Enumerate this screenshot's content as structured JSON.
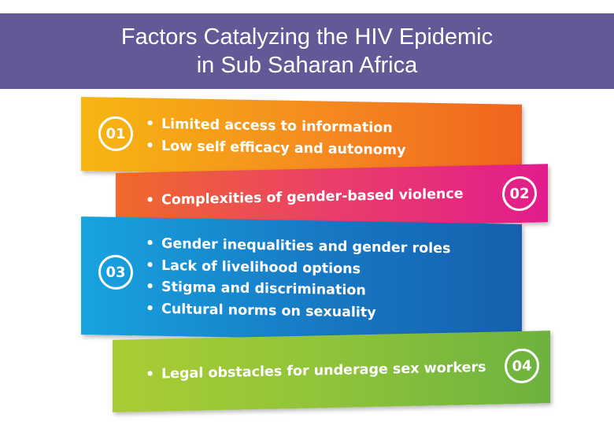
{
  "title": {
    "line1": "Factors Catalyzing the HIV Epidemic",
    "line2": "in Sub Saharan Africa"
  },
  "panels": [
    {
      "number": "01",
      "items": [
        "Limited access to information",
        "Low self efficacy and autonomy"
      ]
    },
    {
      "number": "02",
      "items": [
        "Complexities of gender-based violence"
      ]
    },
    {
      "number": "03",
      "items": [
        "Gender inequalities and gender roles",
        "Lack of livelihood options",
        "Stigma and discrimination",
        "Cultural norms on sexuality"
      ]
    },
    {
      "number": "04",
      "items": [
        "Legal obstacles for underage sex workers"
      ]
    }
  ]
}
